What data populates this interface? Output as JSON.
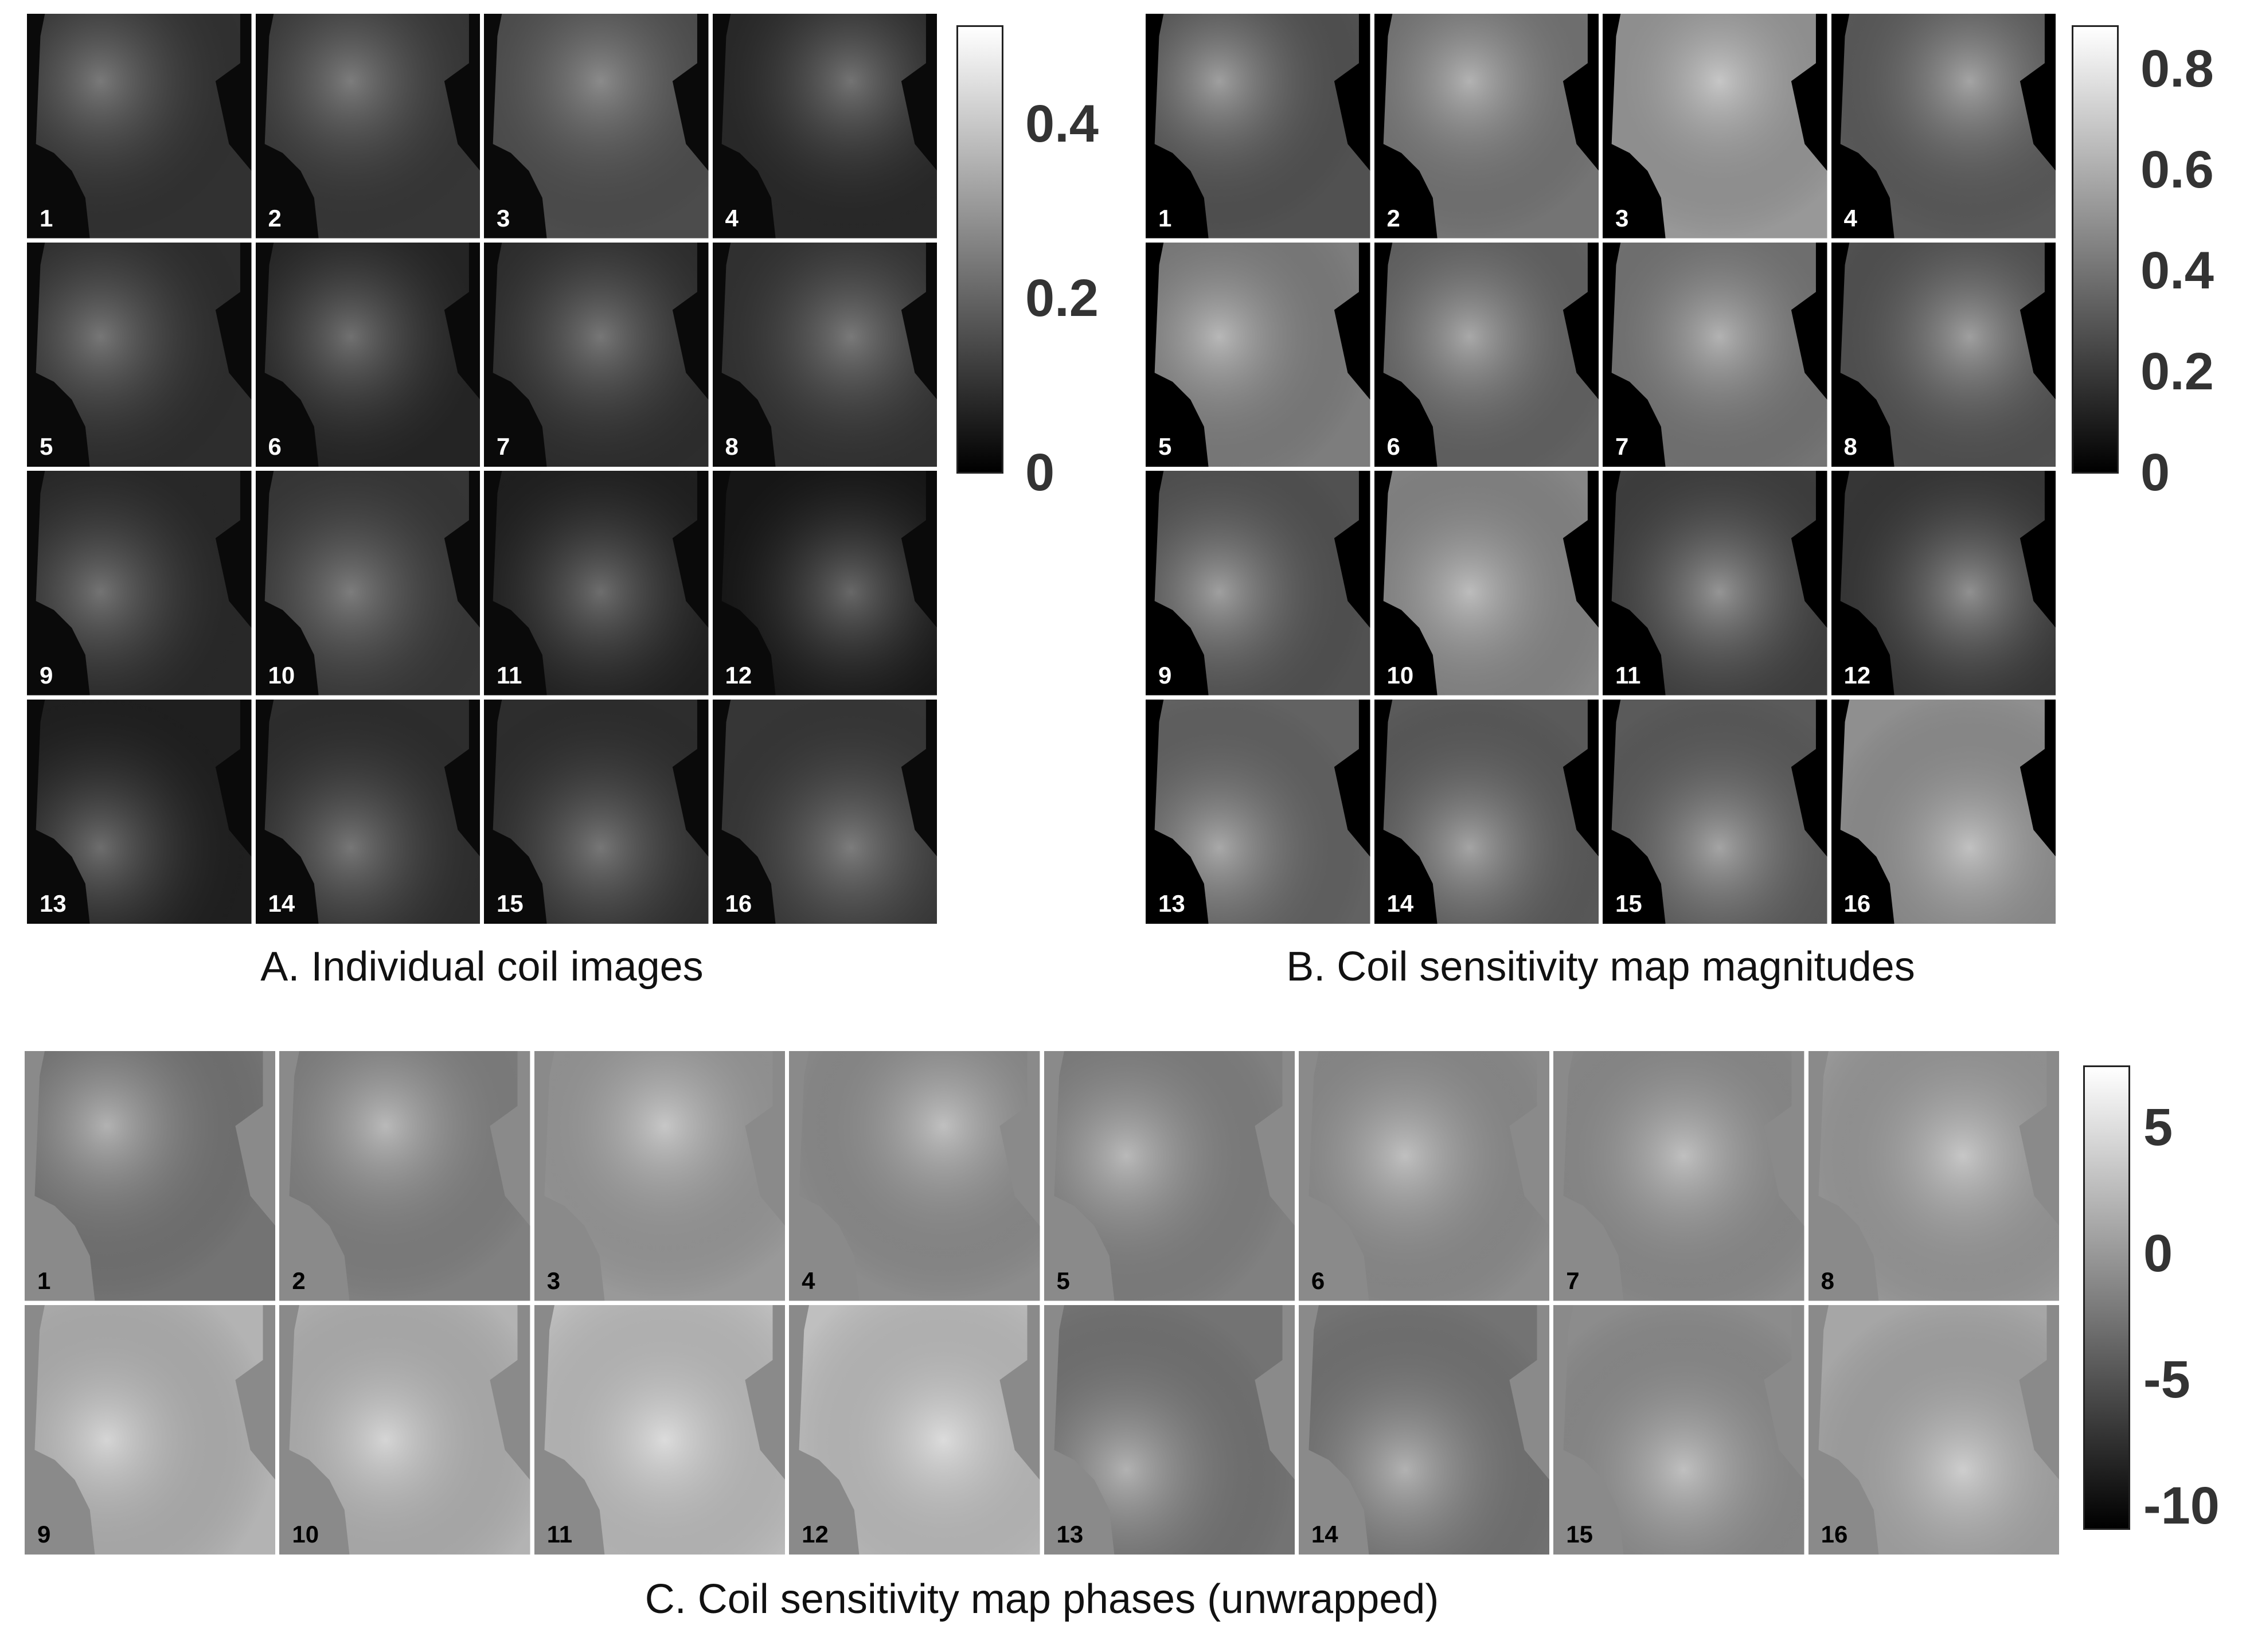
{
  "panel_a": {
    "caption": "A. Individual coil images",
    "tile_labels": [
      "1",
      "2",
      "3",
      "4",
      "5",
      "6",
      "7",
      "8",
      "9",
      "10",
      "11",
      "12",
      "13",
      "14",
      "15",
      "16"
    ],
    "colorbar_ticks": [
      "0.4",
      "0.2",
      "0"
    ],
    "colormap": "gray"
  },
  "panel_b": {
    "caption": "B. Coil sensitivity map magnitudes",
    "tile_labels": [
      "1",
      "2",
      "3",
      "4",
      "5",
      "6",
      "7",
      "8",
      "9",
      "10",
      "11",
      "12",
      "13",
      "14",
      "15",
      "16"
    ],
    "colorbar_ticks": [
      "0.8",
      "0.6",
      "0.4",
      "0.2",
      "0"
    ],
    "colormap": "gray"
  },
  "panel_c": {
    "caption": "C. Coil sensitivity map phases (unwrapped)",
    "tile_labels": [
      "1",
      "2",
      "3",
      "4",
      "5",
      "6",
      "7",
      "8",
      "9",
      "10",
      "11",
      "12",
      "13",
      "14",
      "15",
      "16"
    ],
    "colorbar_ticks": [
      "5",
      "0",
      "-5",
      "-10"
    ],
    "colormap": "gray"
  },
  "colors": {
    "background": "#ffffff",
    "image_dark": "#000000",
    "phase_background": "#8a8a8a"
  }
}
